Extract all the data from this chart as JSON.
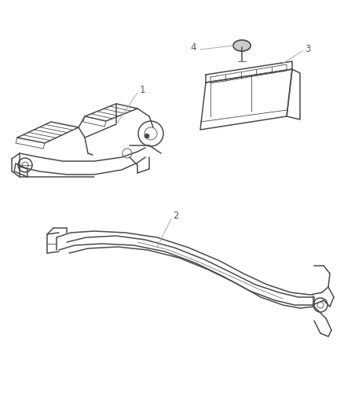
{
  "bg_color": "#ffffff",
  "line_color": "#4a4a4a",
  "label_color": "#555555",
  "leader_color": "#aaaaaa",
  "lw_main": 1.1,
  "lw_thin": 0.6,
  "lw_leader": 0.7,
  "label_fs": 8.5,
  "fig_w": 4.38,
  "fig_h": 5.33,
  "dpi": 100
}
